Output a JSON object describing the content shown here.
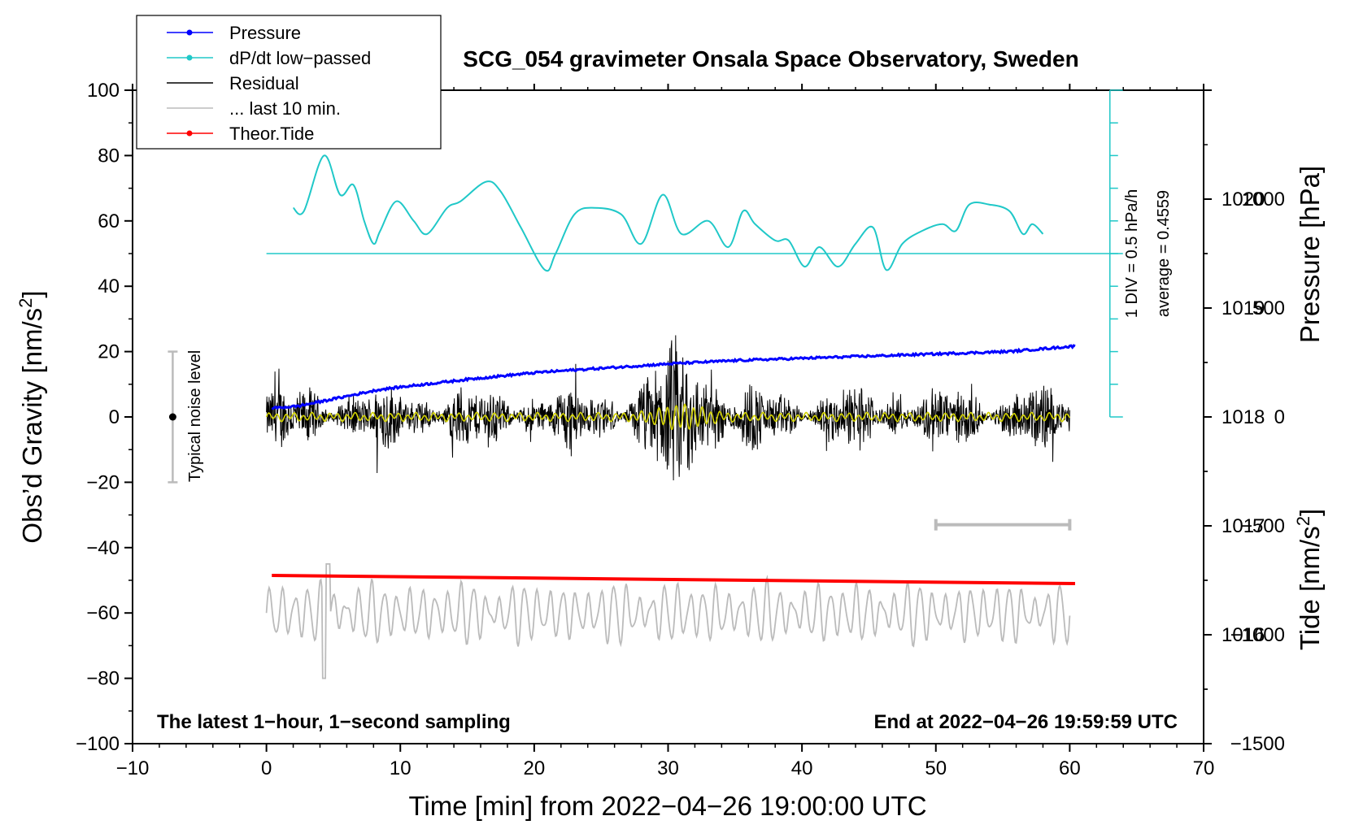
{
  "chart_data": {
    "type": "line",
    "title": "SCG_054 gravimeter Onsala Space Observatory, Sweden",
    "xlabel": "Time [min] from 2022−04−26 19:00:00 UTC",
    "ylabel_left": "Obs’d Gravity [nm/s",
    "ylabel_left_sup": "2",
    "ylabel_left_end": "]",
    "ylabel_right_top": "Pressure [hPa]",
    "ylabel_right_bottom": "Tide [nm/s",
    "ylabel_right_bottom_sup": "2",
    "ylabel_right_bottom_end": "]",
    "xlim": [
      -10,
      70
    ],
    "ylim": [
      -100,
      100
    ],
    "x_ticks": [
      "−10",
      "0",
      "10",
      "20",
      "30",
      "40",
      "50",
      "60",
      "70"
    ],
    "y_ticks": [
      "−100",
      "−80",
      "−60",
      "−40",
      "−20",
      "0",
      "20",
      "40",
      "60",
      "80",
      "100"
    ],
    "pressure_axis": {
      "ticks": [
        "1016",
        "1017",
        "1018",
        "1019",
        "1020"
      ],
      "range_hpa": [
        1015,
        1021
      ]
    },
    "tide_axis": {
      "ticks": [
        "−1500",
        "−1000",
        "−500",
        "0",
        "500",
        "1000"
      ],
      "range": [
        -1500,
        1500
      ]
    },
    "legend": [
      {
        "label": "Pressure",
        "color": "#0000ff",
        "marker": true
      },
      {
        "label": "dP/dt low−passed",
        "color": "#20c8c8",
        "marker": true
      },
      {
        "label": "Residual",
        "color": "#000000",
        "marker": false
      },
      {
        "label": "... last 10 min.",
        "color": "#bbbbbb",
        "marker": false
      },
      {
        "label": "Theor.Tide",
        "color": "#ff0000",
        "marker": true
      }
    ],
    "annotations": {
      "bottom_left": "The latest 1−hour, 1−second sampling",
      "bottom_right": "End at 2022−04−26 19:59:59 UTC",
      "noise_label": "Typical noise level",
      "dpdt_scale": "1 DIV = 0.5 hPa/h",
      "dpdt_average": "average = 0.4559"
    },
    "noise_bar": {
      "x": -7,
      "y_range": [
        -20,
        20
      ]
    },
    "last10_bar": {
      "x_range": [
        50,
        60
      ],
      "y": -33
    },
    "dpdt_scale_bar": {
      "x": 63,
      "y_range": [
        0,
        100
      ],
      "baseline_y": 50
    },
    "series": [
      {
        "name": "Pressure",
        "color": "#0000ff",
        "unit": "hPa",
        "x": [
          0,
          2,
          4,
          6,
          8,
          10,
          15,
          20,
          25,
          30,
          35,
          40,
          45,
          50,
          55,
          60
        ],
        "values": [
          1018.08,
          1018.1,
          1018.15,
          1018.2,
          1018.25,
          1018.28,
          1018.35,
          1018.41,
          1018.45,
          1018.49,
          1018.52,
          1018.54,
          1018.56,
          1018.58,
          1018.6,
          1018.65
        ]
      },
      {
        "name": "dP/dt low−passed",
        "color": "#20c8c8",
        "unit": "plot",
        "x": [
          2.0,
          2.8,
          4.3,
          5.5,
          6.5,
          7.3,
          8.0,
          8.5,
          9.7,
          11,
          12,
          13.5,
          14.5,
          16.4,
          17.5,
          19,
          20.8,
          21.6,
          23,
          24.5,
          26.5,
          28,
          29.6,
          31,
          33,
          34.5,
          35.6,
          36.5,
          38,
          39,
          40.2,
          41.3,
          42.7,
          44,
          45.3,
          46.3,
          47.5,
          49,
          50.5,
          51.5,
          52.5,
          54,
          55.5,
          56.5,
          57.2,
          58
        ],
        "values": [
          64,
          63,
          80,
          68,
          71,
          60,
          53,
          57,
          66,
          60,
          56,
          64,
          66,
          72,
          69,
          58,
          45,
          50,
          62,
          64,
          62,
          53,
          68,
          56,
          60,
          52,
          63,
          59,
          54,
          54,
          46,
          52,
          46,
          53,
          58,
          45,
          53,
          57,
          59,
          57,
          65,
          65,
          63,
          56,
          59,
          56
        ]
      },
      {
        "name": "Residual",
        "color": "#000000",
        "unit": "nm/s2",
        "x_range": [
          0,
          60
        ],
        "amplitude_typical": 10,
        "peak": [
          25,
          -24
        ]
      },
      {
        "name": "Residual (low-passed)",
        "color": "#d4d400",
        "unit": "nm/s2",
        "x_range": [
          0,
          60
        ],
        "amplitude_typical": 1
      },
      {
        "name": "... last 10 min.",
        "color": "#bbbbbb",
        "unit": "nm/s2",
        "x_range": [
          0,
          60
        ],
        "center": -60,
        "amplitude_typical": 8,
        "extremes": [
          -45,
          -80
        ]
      },
      {
        "name": "Theor.Tide",
        "color": "#ff0000",
        "unit": "nm/s2",
        "x": [
          0,
          60
        ],
        "values": [
          -48.5,
          -51
        ]
      }
    ]
  }
}
